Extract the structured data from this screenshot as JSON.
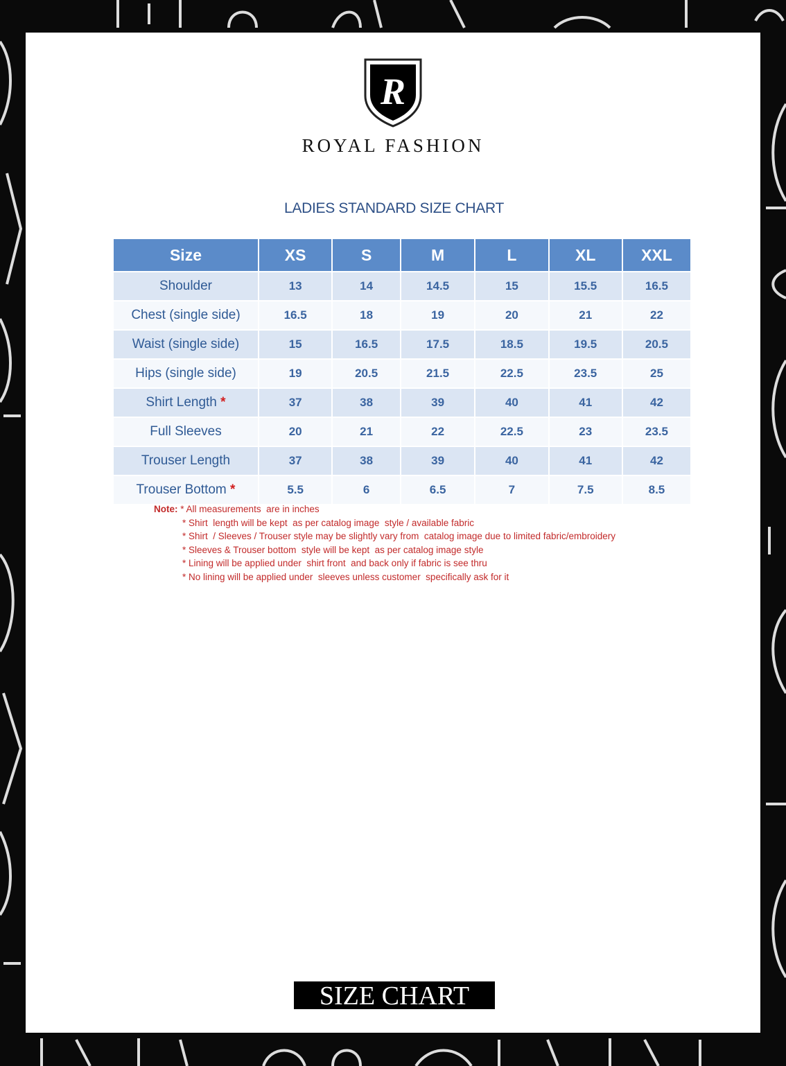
{
  "brand": {
    "name": "ROYAL FASHION",
    "logo_letter": "R"
  },
  "title": "LADIES STANDARD SIZE CHART",
  "table": {
    "headers": [
      "Size",
      "XS",
      "S",
      "M",
      "L",
      "XL",
      "XXL"
    ],
    "rows": [
      {
        "label": "Shoulder",
        "star": "",
        "values": [
          "13",
          "14",
          "14.5",
          "15",
          "15.5",
          "16.5"
        ]
      },
      {
        "label": "Chest (single side)",
        "star": "",
        "values": [
          "16.5",
          "18",
          "19",
          "20",
          "21",
          "22"
        ]
      },
      {
        "label": "Waist (single side)",
        "star": "",
        "values": [
          "15",
          "16.5",
          "17.5",
          "18.5",
          "19.5",
          "20.5"
        ]
      },
      {
        "label": "Hips (single side)",
        "star": "",
        "values": [
          "19",
          "20.5",
          "21.5",
          "22.5",
          "23.5",
          "25"
        ]
      },
      {
        "label": "Shirt Length ",
        "star": "*",
        "values": [
          "37",
          "38",
          "39",
          "40",
          "41",
          "42"
        ]
      },
      {
        "label": "Full Sleeves",
        "star": "",
        "values": [
          "20",
          "21",
          "22",
          "22.5",
          "23",
          "23.5"
        ]
      },
      {
        "label": "Trouser Length",
        "star": "",
        "values": [
          "37",
          "38",
          "39",
          "40",
          "41",
          "42"
        ]
      },
      {
        "label": "Trouser Bottom ",
        "star": "*",
        "values": [
          "5.5",
          "6",
          "6.5",
          "7",
          "7.5",
          "8.5"
        ]
      }
    ]
  },
  "notes": {
    "label": "Note:",
    "lines": [
      "* All measurements  are in inches",
      "* Shirt  length will be kept  as per catalog image  style / available fabric",
      "* Shirt  / Sleeves / Trouser style may be slightly vary from  catalog image due to limited fabric/embroidery",
      "* Sleeves & Trouser bottom  style will be kept  as per catalog image style",
      "* Lining will be applied under  shirt front  and back only if fabric is see thru",
      "* No lining will be applied under  sleeves unless customer  specifically ask for it"
    ]
  },
  "footer": "SIZE CHART",
  "colors": {
    "header": "#5b8bc9",
    "row_odd": "#dbe5f3",
    "row_even": "#f5f8fc",
    "text": "#2f5a95",
    "note": "#c22a2a",
    "title": "#2d4f86"
  }
}
